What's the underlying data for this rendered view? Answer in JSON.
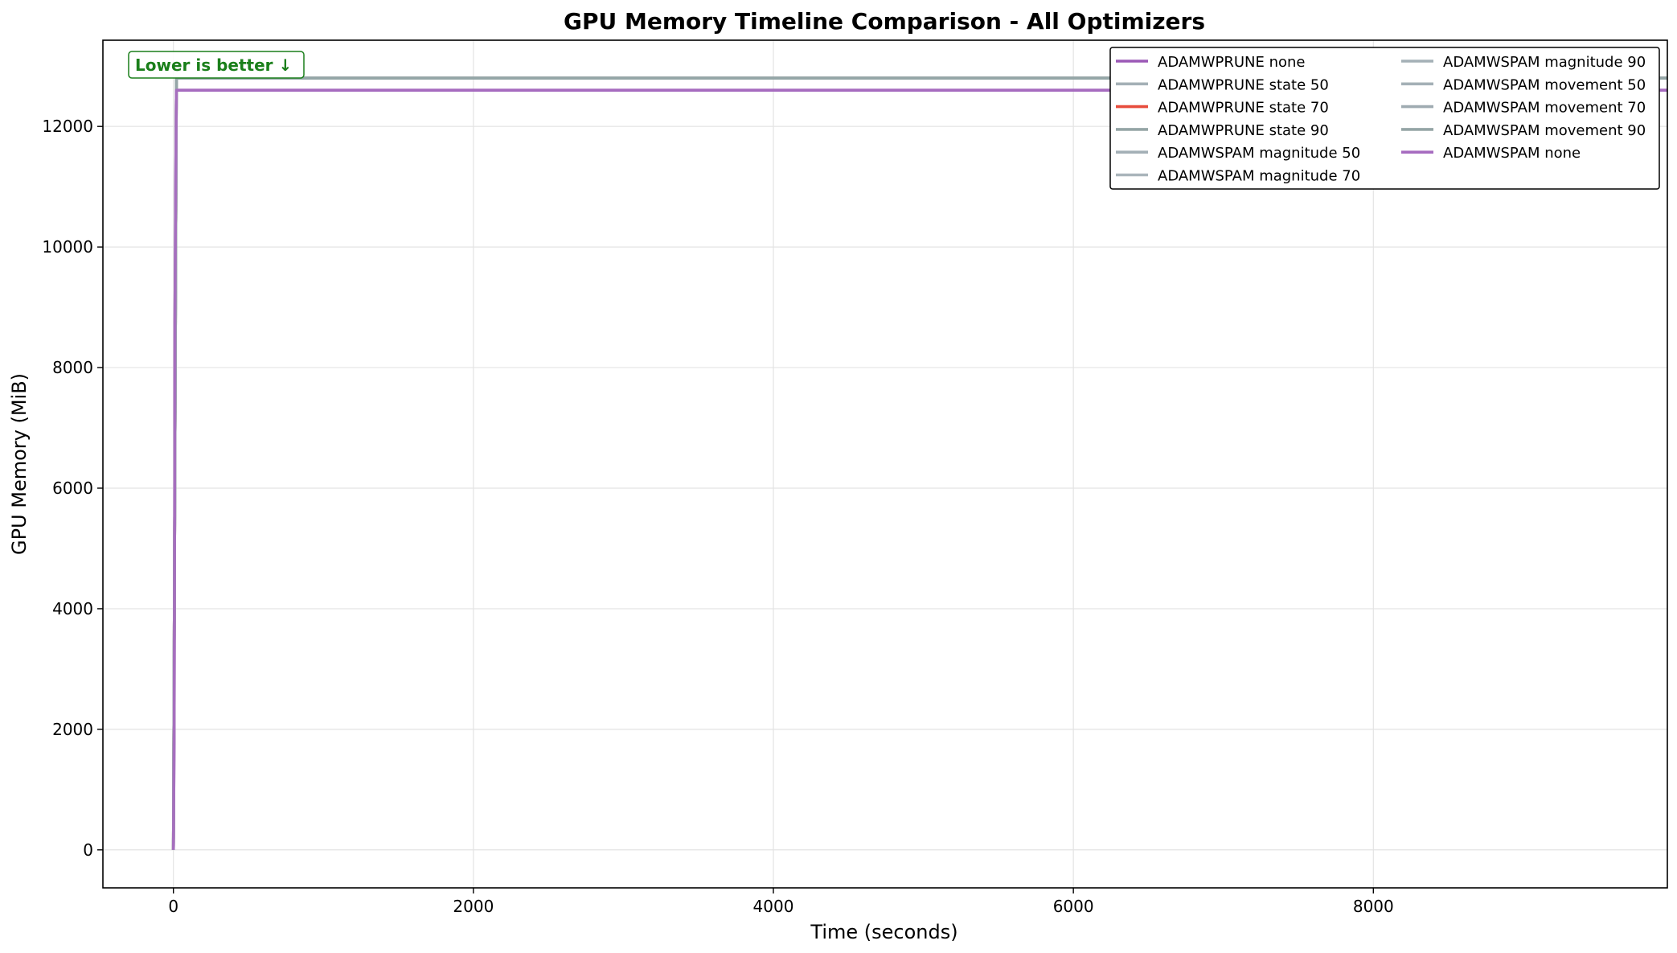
{
  "chart_data": {
    "type": "line",
    "title": "GPU Memory Timeline Comparison - All Optimizers",
    "xlabel": "Time (seconds)",
    "ylabel": "GPU Memory (MiB)",
    "xlim": [
      -470,
      9960
    ],
    "ylim": [
      -630,
      13430
    ],
    "xticks": [
      0,
      2000,
      4000,
      6000,
      8000
    ],
    "yticks": [
      0,
      2000,
      4000,
      6000,
      8000,
      10000,
      12000
    ],
    "grid": true,
    "annotation": {
      "text": "Lower is better ↓",
      "color": "#1a7f1a",
      "position": "top-left"
    },
    "legend": {
      "position": "top-right",
      "columns": 2
    },
    "series": [
      {
        "name": "ADAMWPRUNE none",
        "color": "#9b59b6",
        "x": [
          0,
          5,
          8,
          10,
          12,
          15,
          20,
          25,
          9960
        ],
        "y": [
          0,
          1800,
          5200,
          8800,
          9500,
          11000,
          12600,
          12600,
          12600
        ]
      },
      {
        "name": "ADAMWPRUNE state 50",
        "color": "#a4b0b6",
        "x": [
          0,
          20,
          25,
          9960
        ],
        "y": [
          0,
          12800,
          12800,
          12800
        ]
      },
      {
        "name": "ADAMWPRUNE state 70",
        "color": "#e74c3c",
        "x": [
          0,
          20,
          25,
          9960
        ],
        "y": [
          0,
          12800,
          12800,
          12800
        ]
      },
      {
        "name": "ADAMWPRUNE state 90",
        "color": "#95a5a6",
        "x": [
          0,
          20,
          25,
          9960
        ],
        "y": [
          0,
          12800,
          12800,
          12800
        ]
      },
      {
        "name": "ADAMWSPAM magnitude 50",
        "color": "#a4b0b6",
        "x": [
          0,
          20,
          25,
          9960
        ],
        "y": [
          0,
          12800,
          12800,
          12800
        ]
      },
      {
        "name": "ADAMWSPAM magnitude 70",
        "color": "#aab5bb",
        "x": [
          0,
          20,
          25,
          9960
        ],
        "y": [
          0,
          12800,
          12800,
          12800
        ]
      },
      {
        "name": "ADAMWSPAM magnitude 90",
        "color": "#a4b0b6",
        "x": [
          0,
          20,
          25,
          9960
        ],
        "y": [
          0,
          12800,
          12800,
          12800
        ]
      },
      {
        "name": "ADAMWSPAM movement 50",
        "color": "#a4b0b6",
        "x": [
          0,
          20,
          25,
          9960
        ],
        "y": [
          0,
          12800,
          12800,
          12800
        ]
      },
      {
        "name": "ADAMWSPAM movement 70",
        "color": "#9fabb1",
        "x": [
          0,
          20,
          25,
          9960
        ],
        "y": [
          0,
          12800,
          12800,
          12800
        ]
      },
      {
        "name": "ADAMWSPAM movement 90",
        "color": "#95a5a6",
        "x": [
          0,
          20,
          25,
          9960
        ],
        "y": [
          0,
          12800,
          12800,
          12800
        ]
      },
      {
        "name": "ADAMWSPAM none",
        "color": "#a66bbf",
        "x": [
          0,
          5,
          8,
          10,
          12,
          15,
          20,
          25,
          9960
        ],
        "y": [
          0,
          1800,
          5200,
          8800,
          9500,
          11000,
          12600,
          12600,
          12600
        ]
      }
    ]
  }
}
